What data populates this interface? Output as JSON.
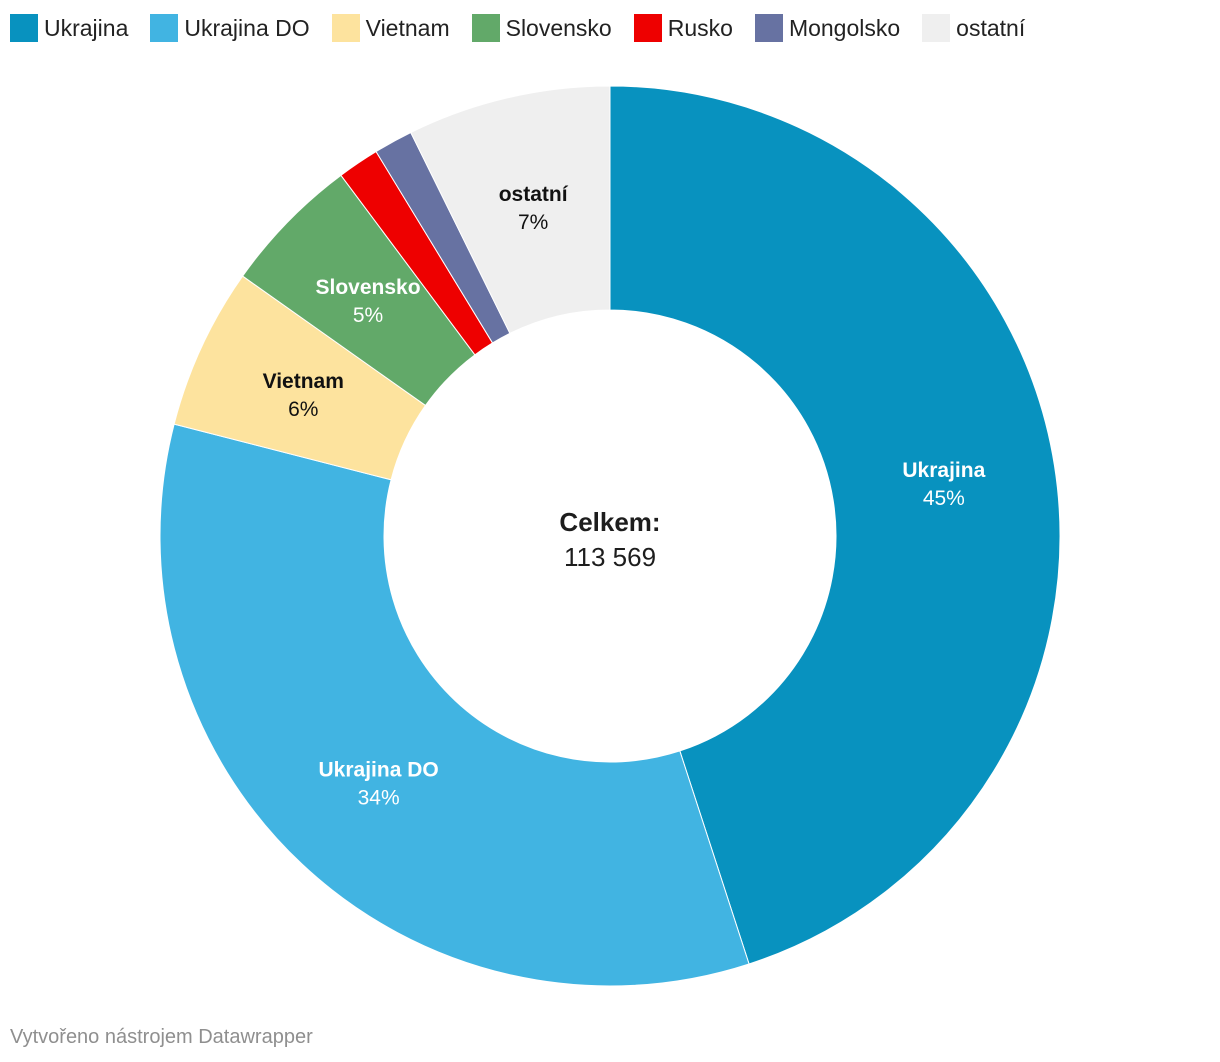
{
  "chart_data": {
    "type": "pie",
    "variant": "donut",
    "legend_position": "top-left",
    "center_title": "Celkem:",
    "center_value": "113 569",
    "slices": [
      {
        "name": "Ukrajina",
        "value": 45.0,
        "label": "45%",
        "color": "#0892bf",
        "label_color": "#ffffff"
      },
      {
        "name": "Ukrajina DO",
        "value": 34.0,
        "label": "34%",
        "color": "#41b4e2",
        "label_color": "#ffffff"
      },
      {
        "name": "Vietnam",
        "value": 5.8,
        "label": "6%",
        "color": "#fde39e",
        "label_color": "#111111"
      },
      {
        "name": "Slovensko",
        "value": 5.0,
        "label": "5%",
        "color": "#62a969",
        "label_color": "#ffffff"
      },
      {
        "name": "Rusko",
        "value": 1.5,
        "label": "",
        "color": "#ee0000",
        "label_color": "#ffffff"
      },
      {
        "name": "Mongolsko",
        "value": 1.4,
        "label": "",
        "color": "#6772a2",
        "label_color": "#ffffff"
      },
      {
        "name": "ostatní",
        "value": 7.3,
        "label": "7%",
        "color": "#efefef",
        "label_color": "#111111"
      }
    ]
  },
  "footer": {
    "text": "Vytvořeno nástrojem Datawrapper"
  }
}
